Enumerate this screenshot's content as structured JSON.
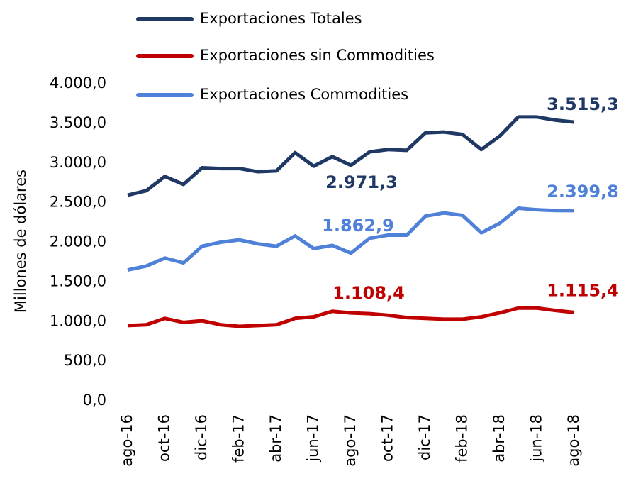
{
  "chart_data": {
    "type": "line",
    "y_label": "Millones de dólares",
    "categories": [
      "ago-16",
      null,
      "oct-16",
      null,
      "dic-16",
      null,
      "feb-17",
      null,
      "abr-17",
      null,
      "jun-17",
      null,
      "ago-17",
      null,
      "oct-17",
      null,
      "dic-17",
      null,
      "feb-18",
      null,
      "abr-18",
      null,
      "jun-18",
      null,
      "ago-18"
    ],
    "series": [
      {
        "name": "Exportaciones Totales",
        "color": "#1f3864",
        "values": [
          2595,
          2650,
          2830,
          2730,
          2940,
          2930,
          2930,
          2890,
          2900,
          3130,
          2960,
          3080,
          2971.3,
          3140,
          3170,
          3160,
          3380,
          3390,
          3360,
          3170,
          3340,
          3580,
          3580,
          3540,
          3515.3
        ],
        "value_labels": [
          null,
          null,
          null,
          null,
          null,
          null,
          null,
          null,
          null,
          null,
          null,
          null,
          "2.971,3",
          null,
          null,
          null,
          null,
          null,
          null,
          null,
          null,
          null,
          null,
          null,
          "3.515,3"
        ]
      },
      {
        "name": "Exportaciones sin Commodities",
        "color": "#c00000",
        "values": [
          950,
          960,
          1040,
          990,
          1010,
          960,
          940,
          950,
          960,
          1040,
          1060,
          1130,
          1108.4,
          1100,
          1080,
          1050,
          1040,
          1030,
          1030,
          1060,
          1110,
          1170,
          1170,
          1140,
          1115.4
        ],
        "value_labels": [
          null,
          null,
          null,
          null,
          null,
          null,
          null,
          null,
          null,
          null,
          null,
          null,
          "1.108,4",
          null,
          null,
          null,
          null,
          null,
          null,
          null,
          null,
          null,
          null,
          null,
          "1.115,4"
        ]
      },
      {
        "name": "Exportaciones Commodities",
        "color": "#4f81d8",
        "values": [
          1650,
          1700,
          1800,
          1740,
          1950,
          2000,
          2030,
          1980,
          1950,
          2080,
          1920,
          1960,
          1862.9,
          2050,
          2090,
          2090,
          2330,
          2370,
          2340,
          2120,
          2240,
          2430,
          2410,
          2400,
          2399.8
        ],
        "value_labels": [
          null,
          null,
          null,
          null,
          null,
          null,
          null,
          null,
          null,
          null,
          null,
          null,
          "1.862,9",
          null,
          null,
          null,
          null,
          null,
          null,
          null,
          null,
          null,
          null,
          null,
          "2.399,8"
        ]
      }
    ],
    "ylim": [
      0,
      4000
    ],
    "yticks": [
      {
        "value": 0,
        "label": "0,0"
      },
      {
        "value": 500,
        "label": "500,0"
      },
      {
        "value": 1000,
        "label": "1.000,0"
      },
      {
        "value": 1500,
        "label": "1.500,0"
      },
      {
        "value": 2000,
        "label": "2.000,0"
      },
      {
        "value": 2500,
        "label": "2.500,0"
      },
      {
        "value": 3000,
        "label": "3.000,0"
      },
      {
        "value": 3500,
        "label": "3.500,0"
      },
      {
        "value": 4000,
        "label": "4.000,0"
      }
    ],
    "grid": false,
    "legend": "top"
  }
}
